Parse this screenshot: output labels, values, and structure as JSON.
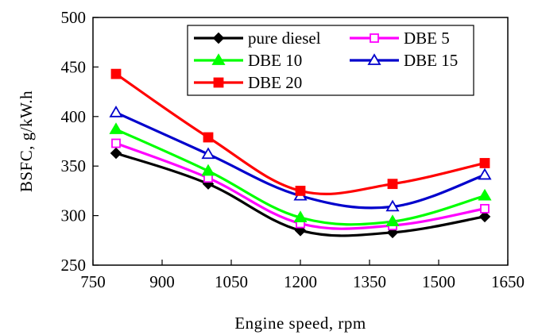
{
  "chart_data": {
    "type": "line",
    "title": "",
    "xlabel": "Engine speed, rpm",
    "ylabel": "BSFC, g/kW.h",
    "xlim": [
      750,
      1650
    ],
    "ylim": [
      250,
      500
    ],
    "xticks": [
      750,
      900,
      1050,
      1200,
      1350,
      1500,
      1650
    ],
    "yticks": [
      250,
      300,
      350,
      400,
      450,
      500
    ],
    "grid": false,
    "legend_position": "top-right",
    "x": [
      800,
      1000,
      1200,
      1400,
      1600
    ],
    "series": [
      {
        "name": "pure diesel",
        "values": [
          363,
          332,
          285,
          283,
          299
        ],
        "color": "#000000",
        "marker": "diamond-filled"
      },
      {
        "name": "DBE 5",
        "values": [
          373,
          338,
          292,
          290,
          307
        ],
        "color": "#ff00ff",
        "marker": "square-open"
      },
      {
        "name": "DBE 10",
        "values": [
          387,
          345,
          298,
          294,
          320
        ],
        "color": "#00ff00",
        "marker": "triangle-filled"
      },
      {
        "name": "DBE 15",
        "values": [
          404,
          362,
          320,
          309,
          341
        ],
        "color": "#0000cc",
        "marker": "triangle-open"
      },
      {
        "name": "DBE 20",
        "values": [
          443,
          379,
          325,
          332,
          353
        ],
        "color": "#ff0000",
        "marker": "square-filled"
      }
    ]
  }
}
